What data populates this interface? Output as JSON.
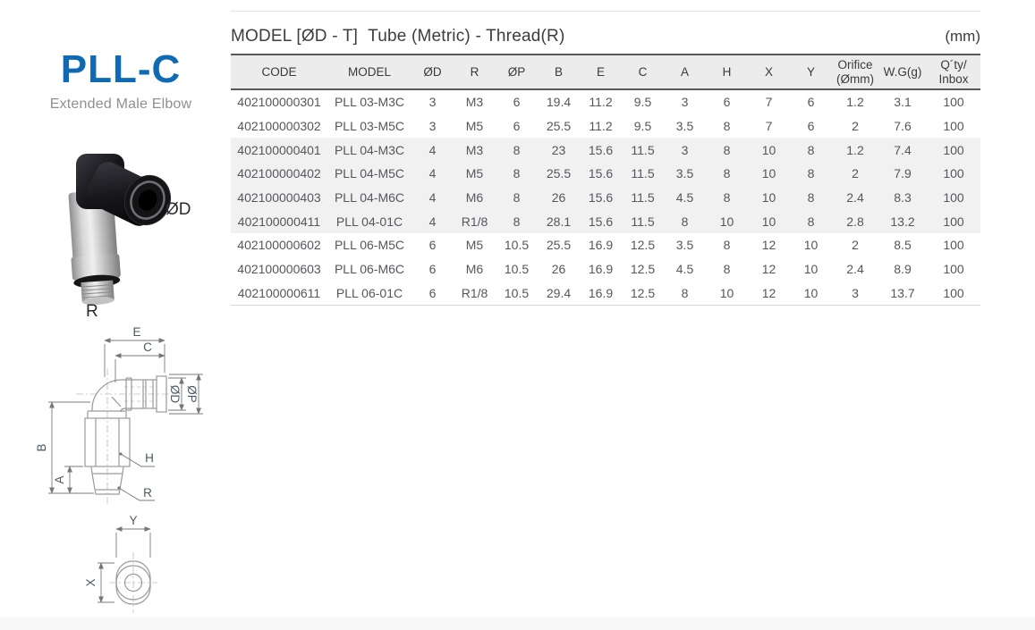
{
  "brand": {
    "title": "PLL-C",
    "subtitle": "Extended Male Elbow"
  },
  "photo": {
    "labels": {
      "diameter": "ØD",
      "thread": "R"
    }
  },
  "drawing": {
    "labels": {
      "E": "E",
      "C": "C",
      "OD": "ØD",
      "OP": "ØP",
      "B": "B",
      "A": "A",
      "H": "H",
      "R": "R",
      "Y": "Y",
      "X": "X"
    }
  },
  "table": {
    "heading": "MODEL [ØD - T]  Tube (Metric) - Thread(R)",
    "unit_note": "(mm)",
    "columns": [
      {
        "label": "CODE"
      },
      {
        "label": "MODEL"
      },
      {
        "label": "ØD"
      },
      {
        "label": "R"
      },
      {
        "label": "ØP"
      },
      {
        "label": "B"
      },
      {
        "label": "E"
      },
      {
        "label": "C"
      },
      {
        "label": "A"
      },
      {
        "label": "H"
      },
      {
        "label": "X"
      },
      {
        "label": "Y"
      },
      {
        "label": "Orifice",
        "label2": "(Ømm)"
      },
      {
        "label": "W.G(g)"
      },
      {
        "label": "Q´ty/",
        "label2": "Inbox"
      }
    ],
    "rows": [
      {
        "highlight": false,
        "cells": [
          "402100000301",
          "PLL 03-M3C",
          "3",
          "M3",
          "6",
          "19.4",
          "11.2",
          "9.5",
          "3",
          "6",
          "7",
          "6",
          "1.2",
          "3.1",
          "100"
        ]
      },
      {
        "highlight": false,
        "cells": [
          "402100000302",
          "PLL 03-M5C",
          "3",
          "M5",
          "6",
          "25.5",
          "11.2",
          "9.5",
          "3.5",
          "8",
          "7",
          "6",
          "2",
          "7.6",
          "100"
        ]
      },
      {
        "highlight": true,
        "cells": [
          "402100000401",
          "PLL 04-M3C",
          "4",
          "M3",
          "8",
          "23",
          "15.6",
          "11.5",
          "3",
          "8",
          "10",
          "8",
          "1.2",
          "7.4",
          "100"
        ]
      },
      {
        "highlight": true,
        "cells": [
          "402100000402",
          "PLL 04-M5C",
          "4",
          "M5",
          "8",
          "25.5",
          "15.6",
          "11.5",
          "3.5",
          "8",
          "10",
          "8",
          "2",
          "7.9",
          "100"
        ]
      },
      {
        "highlight": true,
        "cells": [
          "402100000403",
          "PLL 04-M6C",
          "4",
          "M6",
          "8",
          "26",
          "15.6",
          "11.5",
          "4.5",
          "8",
          "10",
          "8",
          "2.4",
          "8.3",
          "100"
        ]
      },
      {
        "highlight": true,
        "cells": [
          "402100000411",
          "PLL 04-01C",
          "4",
          "R1/8",
          "8",
          "28.1",
          "15.6",
          "11.5",
          "8",
          "10",
          "10",
          "8",
          "2.8",
          "13.2",
          "100"
        ]
      },
      {
        "highlight": false,
        "cells": [
          "402100000602",
          "PLL 06-M5C",
          "6",
          "M5",
          "10.5",
          "25.5",
          "16.9",
          "12.5",
          "3.5",
          "8",
          "12",
          "10",
          "2",
          "8.5",
          "100"
        ]
      },
      {
        "highlight": false,
        "cells": [
          "402100000603",
          "PLL 06-M6C",
          "6",
          "M6",
          "10.5",
          "26",
          "16.9",
          "12.5",
          "4.5",
          "8",
          "12",
          "10",
          "2.4",
          "8.9",
          "100"
        ]
      },
      {
        "highlight": false,
        "cells": [
          "402100000611",
          "PLL 06-01C",
          "6",
          "R1/8",
          "10.5",
          "29.4",
          "16.9",
          "12.5",
          "8",
          "10",
          "12",
          "10",
          "3",
          "13.7",
          "100"
        ]
      }
    ]
  },
  "colors": {
    "accent_blue": "#0f6ab4",
    "header_rule": "#58595b",
    "highlight_row": "#f1f1f1"
  }
}
